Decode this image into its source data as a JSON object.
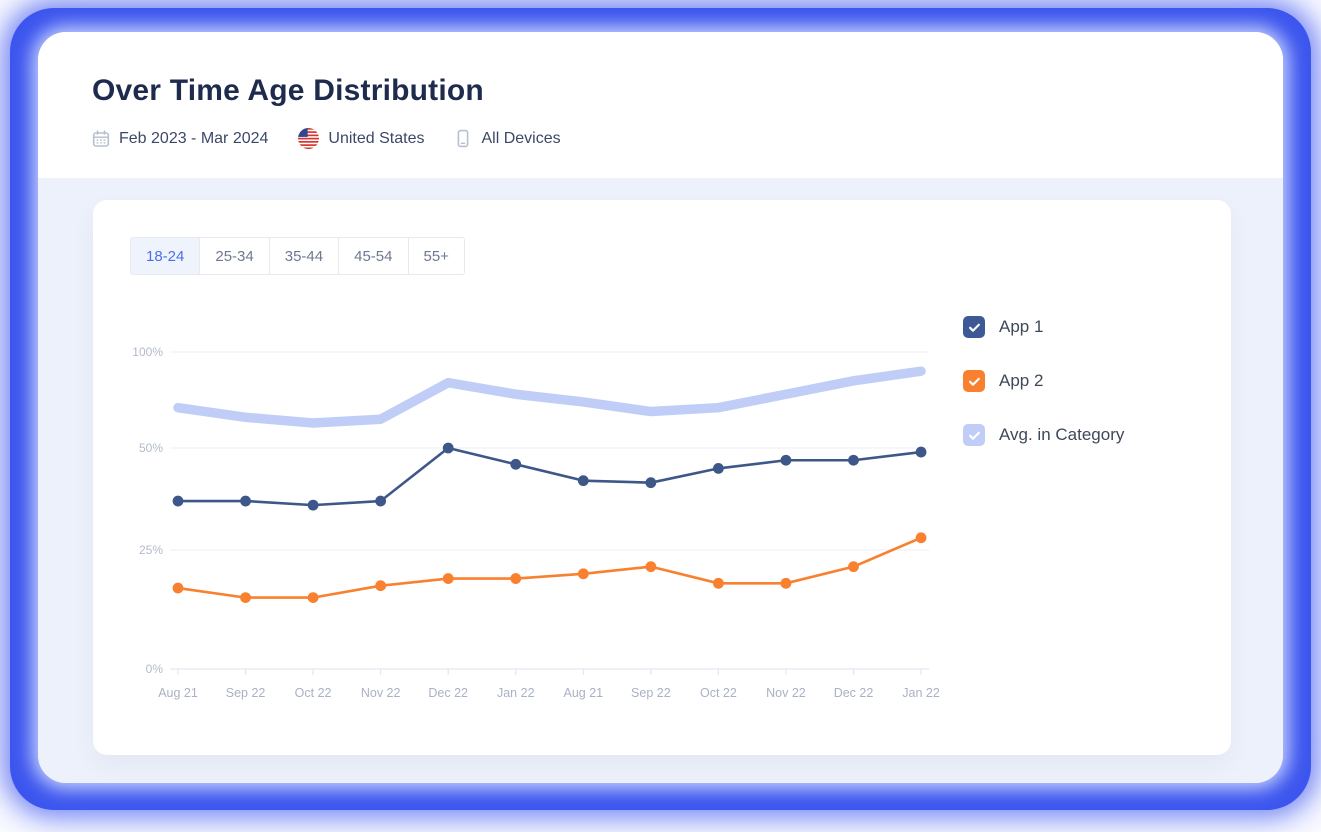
{
  "header": {
    "title": "Over Time Age Distribution",
    "filters": [
      {
        "icon": "calendar-icon",
        "label": "Feb 2023 - Mar 2024"
      },
      {
        "icon": "us-flag-icon",
        "label": "United States"
      },
      {
        "icon": "mobile-device-icon",
        "label": "All Devices"
      }
    ]
  },
  "tabs": {
    "items": [
      "18-24",
      "25-34",
      "35-44",
      "45-54",
      "55+"
    ],
    "selected": "18-24"
  },
  "legend": [
    {
      "label": "App 1",
      "color": "#3d5a97",
      "checked": true
    },
    {
      "label": "App 2",
      "color": "#f8802e",
      "checked": true
    },
    {
      "label": "Avg. in Category",
      "color": "#bfcdf7",
      "checked": true
    }
  ],
  "chart_data": {
    "type": "line",
    "title": "Over Time Age Distribution",
    "categories": [
      "Aug 21",
      "Sep 22",
      "Oct 22",
      "Nov 22",
      "Dec 22",
      "Jan 22",
      "Aug 21",
      "Sep 22",
      "Oct 22",
      "Nov 22",
      "Dec 22",
      "Jan 22"
    ],
    "series": [
      {
        "name": "App 1",
        "color": "#3e5789",
        "style": "line-dots",
        "values": [
          37,
          37,
          36,
          37,
          50,
          46,
          42,
          41.5,
          45,
          47,
          47,
          49
        ]
      },
      {
        "name": "App 2",
        "color": "#f8802e",
        "style": "line-dots",
        "values": [
          17,
          15,
          15,
          17.5,
          19,
          19,
          20,
          21.5,
          18,
          18,
          21.5,
          28
        ]
      },
      {
        "name": "Avg. in Category",
        "color": "#bfcdf7",
        "style": "thick-band",
        "values": [
          71,
          66,
          63,
          65,
          84,
          78,
          74,
          69,
          71,
          78,
          85,
          90
        ]
      }
    ],
    "unit": "%",
    "y_ticks": [
      "0%",
      "25%",
      "50%",
      "100%"
    ],
    "y_tick_values": [
      0,
      25,
      50,
      100
    ],
    "ylim": [
      0,
      100
    ],
    "y_scale": "non-linear (0,25,50,100 nearly evenly spaced)",
    "grid": "horizontal",
    "legend_position": "right"
  }
}
